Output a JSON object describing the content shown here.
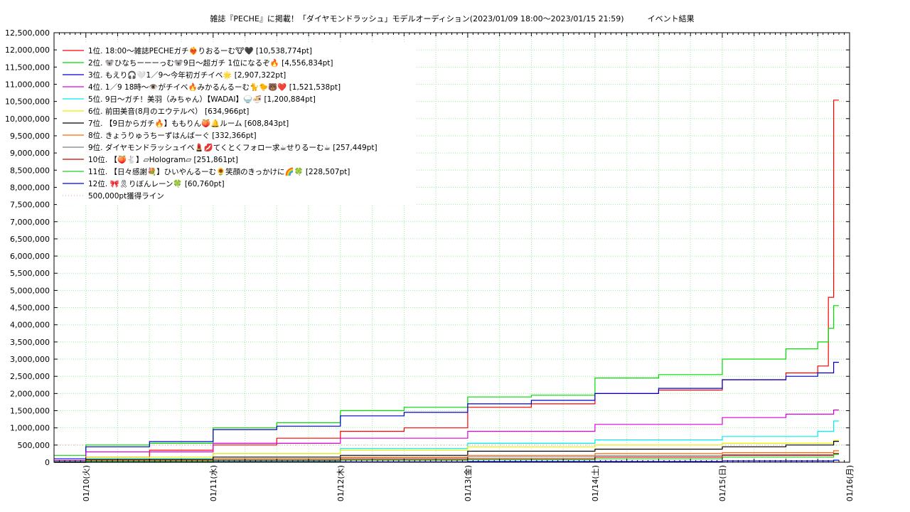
{
  "chart_data": {
    "type": "line",
    "title": "雑誌『PECHE』に掲載！「ダイヤモンドラッシュ」モデルオーディション(2023/01/09 18:00～2023/01/15 21:59)　　　イベント結果",
    "ylim": [
      0,
      12500000
    ],
    "y_ticks": [
      "0",
      "500,000",
      "1,000,000",
      "1,500,000",
      "2,000,000",
      "2,500,000",
      "3,000,000",
      "3,500,000",
      "4,000,000",
      "4,500,000",
      "5,000,000",
      "5,500,000",
      "6,000,000",
      "6,500,000",
      "7,000,000",
      "7,500,000",
      "8,000,000",
      "8,500,000",
      "9,000,000",
      "9,500,000",
      "10,000,000",
      "10,500,000",
      "11,000,000",
      "11,500,000",
      "12,000,000",
      "12,500,000"
    ],
    "x_range": [
      "2023-01-09 18:00",
      "2023-01-16 00:00"
    ],
    "x_ticks": [
      {
        "at": "2023-01-10",
        "label": "01/10(火)"
      },
      {
        "at": "2023-01-11",
        "label": "01/11(水)"
      },
      {
        "at": "2023-01-12",
        "label": "01/12(木)"
      },
      {
        "at": "2023-01-13",
        "label": "01/13(金)"
      },
      {
        "at": "2023-01-14",
        "label": "01/14(土)"
      },
      {
        "at": "2023-01-15",
        "label": "01/15(日)"
      },
      {
        "at": "2023-01-16",
        "label": "01/16(月)"
      }
    ],
    "grid": true,
    "legend_position": "top-left",
    "series": [
      {
        "name": "1位. 18:00～雑誌PECHEガチ❤️‍🔥りおるーむ🐮🖤 [10,538,774pt]",
        "color": "#ff0000",
        "points": [
          [
            "2023-01-09 18:00",
            0
          ],
          [
            "2023-01-10 00:00",
            150000
          ],
          [
            "2023-01-10 12:00",
            350000
          ],
          [
            "2023-01-11 00:00",
            500000
          ],
          [
            "2023-01-11 12:00",
            700000
          ],
          [
            "2023-01-12 00:00",
            900000
          ],
          [
            "2023-01-12 12:00",
            1000000
          ],
          [
            "2023-01-13 00:00",
            1600000
          ],
          [
            "2023-01-13 12:00",
            1700000
          ],
          [
            "2023-01-14 00:00",
            2000000
          ],
          [
            "2023-01-14 12:00",
            2100000
          ],
          [
            "2023-01-15 00:00",
            2400000
          ],
          [
            "2023-01-15 12:00",
            2600000
          ],
          [
            "2023-01-15 18:00",
            2800000
          ],
          [
            "2023-01-15 20:00",
            4800000
          ],
          [
            "2023-01-15 21:00",
            10538774
          ],
          [
            "2023-01-15 21:59",
            10538774
          ]
        ]
      },
      {
        "name": "2位. 🐨ひなちーーーっむ🐨9日～超ガチ 1位になるぞ🔥 [4,556,834pt]",
        "color": "#00dd00",
        "points": [
          [
            "2023-01-09 18:00",
            200000
          ],
          [
            "2023-01-10 00:00",
            500000
          ],
          [
            "2023-01-10 12:00",
            550000
          ],
          [
            "2023-01-11 00:00",
            1000000
          ],
          [
            "2023-01-11 12:00",
            1150000
          ],
          [
            "2023-01-12 00:00",
            1500000
          ],
          [
            "2023-01-12 12:00",
            1600000
          ],
          [
            "2023-01-13 00:00",
            1900000
          ],
          [
            "2023-01-13 12:00",
            1950000
          ],
          [
            "2023-01-14 00:00",
            2450000
          ],
          [
            "2023-01-14 12:00",
            2550000
          ],
          [
            "2023-01-15 00:00",
            3000000
          ],
          [
            "2023-01-15 12:00",
            3300000
          ],
          [
            "2023-01-15 18:00",
            3500000
          ],
          [
            "2023-01-15 20:00",
            3900000
          ],
          [
            "2023-01-15 21:00",
            4556834
          ],
          [
            "2023-01-15 21:59",
            4556834
          ]
        ]
      },
      {
        "name": "3位. もえり🎧🤍1／9～今年初ガチイベ🌟 [2,907,322pt]",
        "color": "#0000cc",
        "points": [
          [
            "2023-01-09 18:00",
            100000
          ],
          [
            "2023-01-10 00:00",
            450000
          ],
          [
            "2023-01-10 12:00",
            600000
          ],
          [
            "2023-01-11 00:00",
            950000
          ],
          [
            "2023-01-11 12:00",
            1050000
          ],
          [
            "2023-01-12 00:00",
            1350000
          ],
          [
            "2023-01-12 12:00",
            1450000
          ],
          [
            "2023-01-13 00:00",
            1700000
          ],
          [
            "2023-01-13 12:00",
            1800000
          ],
          [
            "2023-01-14 00:00",
            2000000
          ],
          [
            "2023-01-14 12:00",
            2150000
          ],
          [
            "2023-01-15 00:00",
            2400000
          ],
          [
            "2023-01-15 12:00",
            2500000
          ],
          [
            "2023-01-15 18:00",
            2600000
          ],
          [
            "2023-01-15 21:00",
            2907322
          ],
          [
            "2023-01-15 21:59",
            2907322
          ]
        ]
      },
      {
        "name": "4位. 1／9 18時～👁️がチイベ🔥みかるんるーむ🐈🐤🐻❤️ [1,521,538pt]",
        "color": "#dd00dd",
        "points": [
          [
            "2023-01-09 18:00",
            50000
          ],
          [
            "2023-01-10 00:00",
            300000
          ],
          [
            "2023-01-11 00:00",
            550000
          ],
          [
            "2023-01-12 00:00",
            700000
          ],
          [
            "2023-01-13 00:00",
            900000
          ],
          [
            "2023-01-14 00:00",
            1100000
          ],
          [
            "2023-01-15 00:00",
            1300000
          ],
          [
            "2023-01-15 12:00",
            1400000
          ],
          [
            "2023-01-15 21:00",
            1521538
          ],
          [
            "2023-01-15 21:59",
            1521538
          ]
        ]
      },
      {
        "name": "5位. 9日～ガチ！美羽（みちゃん）【WADAI】🍚🍜 [1,200,884pt]",
        "color": "#00eeee",
        "points": [
          [
            "2023-01-09 18:00",
            20000
          ],
          [
            "2023-01-10 00:00",
            100000
          ],
          [
            "2023-01-11 00:00",
            250000
          ],
          [
            "2023-01-12 00:00",
            400000
          ],
          [
            "2023-01-13 00:00",
            550000
          ],
          [
            "2023-01-14 00:00",
            650000
          ],
          [
            "2023-01-15 00:00",
            750000
          ],
          [
            "2023-01-15 18:00",
            900000
          ],
          [
            "2023-01-15 21:00",
            1200884
          ],
          [
            "2023-01-15 21:59",
            1200884
          ]
        ]
      },
      {
        "name": "6位. 前田美音(8月のエウテルペ） [634,966pt]",
        "color": "#eeee00",
        "points": [
          [
            "2023-01-09 18:00",
            10000
          ],
          [
            "2023-01-10 00:00",
            150000
          ],
          [
            "2023-01-11 00:00",
            250000
          ],
          [
            "2023-01-12 00:00",
            350000
          ],
          [
            "2023-01-13 00:00",
            450000
          ],
          [
            "2023-01-14 00:00",
            500000
          ],
          [
            "2023-01-15 00:00",
            550000
          ],
          [
            "2023-01-15 21:00",
            634966
          ],
          [
            "2023-01-15 21:59",
            634966
          ]
        ]
      },
      {
        "name": "7位. 【9日からガチ🔥】ももりん🍑🔔ルーム [608,843pt]",
        "color": "#000000",
        "points": [
          [
            "2023-01-09 18:00",
            10000
          ],
          [
            "2023-01-10 00:00",
            80000
          ],
          [
            "2023-01-11 00:00",
            150000
          ],
          [
            "2023-01-12 00:00",
            200000
          ],
          [
            "2023-01-13 00:00",
            320000
          ],
          [
            "2023-01-14 00:00",
            380000
          ],
          [
            "2023-01-15 00:00",
            450000
          ],
          [
            "2023-01-15 12:00",
            500000
          ],
          [
            "2023-01-15 21:00",
            608843
          ],
          [
            "2023-01-15 21:59",
            608843
          ]
        ]
      },
      {
        "name": "8位. きょうりゅうちーずはんばーぐ [332,366pt]",
        "color": "#ff6600",
        "points": [
          [
            "2023-01-09 18:00",
            0
          ],
          [
            "2023-01-10 00:00",
            50000
          ],
          [
            "2023-01-11 00:00",
            100000
          ],
          [
            "2023-01-12 00:00",
            150000
          ],
          [
            "2023-01-13 00:00",
            200000
          ],
          [
            "2023-01-14 00:00",
            250000
          ],
          [
            "2023-01-15 00:00",
            280000
          ],
          [
            "2023-01-15 21:00",
            332366
          ],
          [
            "2023-01-15 21:59",
            332366
          ]
        ]
      },
      {
        "name": "9位. ダイヤモンドラッシュイベ💄💋てくとくフォロー求☕せりるーむ☕ [257,449pt]",
        "color": "#808080",
        "points": [
          [
            "2023-01-09 18:00",
            0
          ],
          [
            "2023-01-10 00:00",
            30000
          ],
          [
            "2023-01-11 00:00",
            80000
          ],
          [
            "2023-01-12 00:00",
            120000
          ],
          [
            "2023-01-13 00:00",
            160000
          ],
          [
            "2023-01-14 00:00",
            190000
          ],
          [
            "2023-01-15 00:00",
            220000
          ],
          [
            "2023-01-15 21:00",
            257449
          ],
          [
            "2023-01-15 21:59",
            257449
          ]
        ]
      },
      {
        "name": "10位. 【🍑🐇】▱Hologram▱ [251,861pt]",
        "color": "#cc0000",
        "points": [
          [
            "2023-01-09 18:00",
            0
          ],
          [
            "2023-01-10 00:00",
            20000
          ],
          [
            "2023-01-11 00:00",
            50000
          ],
          [
            "2023-01-12 00:00",
            80000
          ],
          [
            "2023-01-13 00:00",
            100000
          ],
          [
            "2023-01-14 00:00",
            150000
          ],
          [
            "2023-01-15 00:00",
            200000
          ],
          [
            "2023-01-15 21:00",
            251861
          ],
          [
            "2023-01-15 21:59",
            251861
          ]
        ]
      },
      {
        "name": "11位. 【日々感謝💐】ひいやんるーむ🌻笑顔のきっかけに🌈🍀 [228,507pt]",
        "color": "#22cc22",
        "points": [
          [
            "2023-01-09 18:00",
            0
          ],
          [
            "2023-01-10 00:00",
            20000
          ],
          [
            "2023-01-11 00:00",
            40000
          ],
          [
            "2023-01-12 00:00",
            60000
          ],
          [
            "2023-01-13 00:00",
            80000
          ],
          [
            "2023-01-14 00:00",
            100000
          ],
          [
            "2023-01-15 00:00",
            150000
          ],
          [
            "2023-01-15 21:00",
            228507
          ],
          [
            "2023-01-15 21:59",
            228507
          ]
        ]
      },
      {
        "name": "12位. 🎀🎗りぼんレーン🍀 [60,760pt]",
        "color": "#0000ee",
        "points": [
          [
            "2023-01-09 18:00",
            0
          ],
          [
            "2023-01-11 00:00",
            10000
          ],
          [
            "2023-01-13 00:00",
            20000
          ],
          [
            "2023-01-15 00:00",
            40000
          ],
          [
            "2023-01-15 21:00",
            60760
          ],
          [
            "2023-01-15 21:59",
            60760
          ]
        ]
      }
    ],
    "reference_line": {
      "name": "500,000pt獲得ライン",
      "value": 500000,
      "color": "#ff9999"
    }
  }
}
